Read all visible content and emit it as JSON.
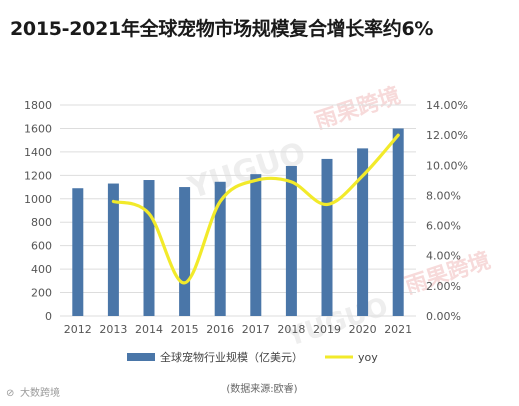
{
  "title": "2015-2021年全球宠物市场规模复合增长率约6%",
  "source_note": "(数据来源:欧睿)",
  "watermarks": [
    "YUGUO",
    "雨果跨境",
    "YUGUO",
    "雨果跨境"
  ],
  "corner_logo": "大数跨境",
  "chart_data": {
    "type": "bar",
    "categories": [
      "2012",
      "2013",
      "2014",
      "2015",
      "2016",
      "2017",
      "2018",
      "2019",
      "2020",
      "2021"
    ],
    "y_ticks": [
      "0",
      "200",
      "400",
      "600",
      "800",
      "1000",
      "1200",
      "1400",
      "1600",
      "1800"
    ],
    "y2_ticks": [
      "0.00%",
      "2.00%",
      "4.00%",
      "6.00%",
      "8.00%",
      "10.00%",
      "12.00%",
      "14.00%"
    ],
    "ylim": [
      0,
      1800
    ],
    "y2lim": [
      0,
      14
    ],
    "grid": true,
    "legend_position": "bottom",
    "series": [
      {
        "name": "全球宠物行业规模（亿美元）",
        "type": "bar",
        "axis": "left",
        "color": "#4a76a8",
        "values": [
          1090,
          1130,
          1160,
          1100,
          1145,
          1210,
          1280,
          1340,
          1430,
          1600
        ]
      },
      {
        "name": "yoy",
        "type": "line",
        "axis": "right",
        "color": "#f2ea2a",
        "values": [
          null,
          7.6,
          6.8,
          2.2,
          7.6,
          9.0,
          8.9,
          7.4,
          9.3,
          12.0
        ]
      }
    ]
  }
}
